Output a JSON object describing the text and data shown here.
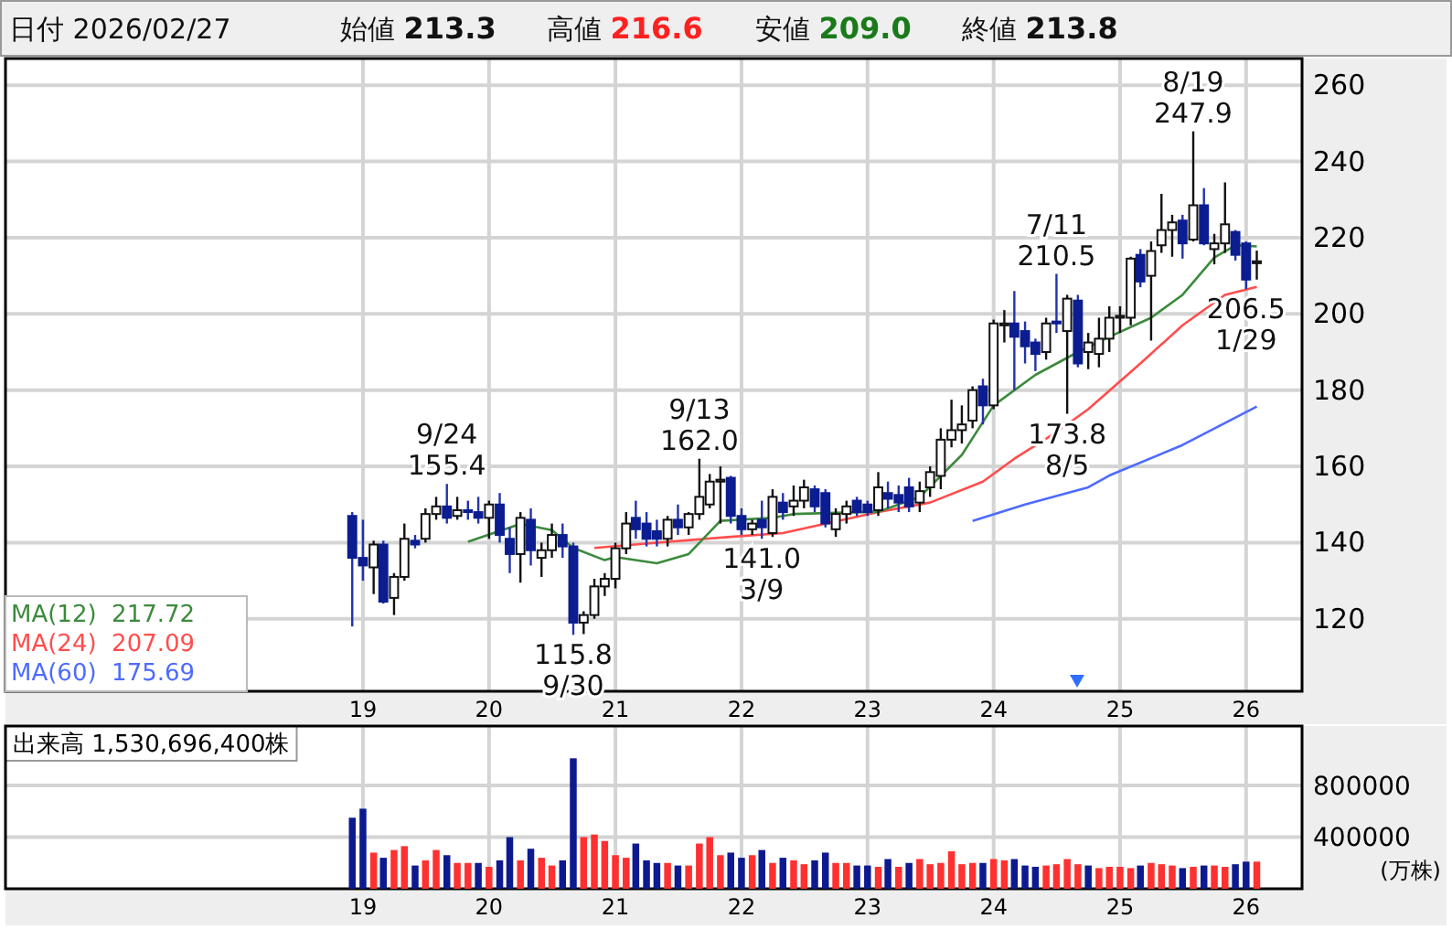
{
  "chart_data": [
    {
      "type": "candlestick",
      "legend": "bottom left",
      "grid": true,
      "annotations": [
        "日付 2026/02/27",
        "始値 213.3",
        "高値 216.6",
        "安値 209.0",
        "終値 213.8",
        {
          "text": "9/24",
          "x": "2019-09",
          "y": 155.4
        },
        {
          "text": "155.4",
          "x": "2019-09",
          "y": 155.4
        },
        {
          "text": "115.8",
          "x": "2020-09",
          "y": 115.8
        },
        {
          "text": "9/30",
          "x": "2020-09",
          "y": 115.8
        },
        {
          "text": "9/13",
          "x": "2021-09",
          "y": 162.0
        },
        {
          "text": "162.0",
          "x": "2021-09",
          "y": 162.0
        },
        {
          "text": "141.0",
          "x": "2022-03",
          "y": 141.0
        },
        {
          "text": "3/9",
          "x": "2022-03",
          "y": 141.0
        },
        {
          "text": "7/11",
          "x": "2024-07",
          "y": 210.5
        },
        {
          "text": "210.5",
          "x": "2024-07",
          "y": 210.5
        },
        {
          "text": "173.8",
          "x": "2024-08",
          "y": 173.8
        },
        {
          "text": "8/5",
          "x": "2024-08",
          "y": 173.8
        },
        {
          "text": "8/19",
          "x": "2025-08",
          "y": 247.9
        },
        {
          "text": "247.9",
          "x": "2025-08",
          "y": 247.9
        },
        {
          "text": "206.5",
          "x": "2026-01",
          "y": 206.5
        },
        {
          "text": "1/29",
          "x": "2026-01",
          "y": 206.5
        }
      ],
      "xlim": [
        "2016-03-02",
        "2026-06-12"
      ],
      "xticks": [
        {
          "value": "2019-01-01",
          "label": "19"
        },
        {
          "value": "2020-01-01",
          "label": "20"
        },
        {
          "value": "2021-01-01",
          "label": "21"
        },
        {
          "value": "2022-01-01",
          "label": "22"
        },
        {
          "value": "2023-01-01",
          "label": "23"
        },
        {
          "value": "2024-01-01",
          "label": "24"
        },
        {
          "value": "2025-01-01",
          "label": "25"
        },
        {
          "value": "2026-01-01",
          "label": "26"
        }
      ],
      "ylim": [
        101,
        267
      ],
      "yticks": [
        120,
        140,
        160,
        180,
        200,
        220,
        240,
        260
      ],
      "x": [
        "2018-12",
        "2019-01",
        "2019-02",
        "2019-03",
        "2019-04",
        "2019-05",
        "2019-06",
        "2019-07",
        "2019-08",
        "2019-09",
        "2019-10",
        "2019-11",
        "2019-12",
        "2020-01",
        "2020-02",
        "2020-03",
        "2020-04",
        "2020-05",
        "2020-06",
        "2020-07",
        "2020-08",
        "2020-09",
        "2020-10",
        "2020-11",
        "2020-12",
        "2021-01",
        "2021-02",
        "2021-03",
        "2021-04",
        "2021-05",
        "2021-06",
        "2021-07",
        "2021-08",
        "2021-09",
        "2021-10",
        "2021-11",
        "2021-12",
        "2022-01",
        "2022-02",
        "2022-03",
        "2022-04",
        "2022-05",
        "2022-06",
        "2022-07",
        "2022-08",
        "2022-09",
        "2022-10",
        "2022-11",
        "2022-12",
        "2023-01",
        "2023-02",
        "2023-03",
        "2023-04",
        "2023-05",
        "2023-06",
        "2023-07",
        "2023-08",
        "2023-09",
        "2023-10",
        "2023-11",
        "2023-12",
        "2024-01",
        "2024-02",
        "2024-03",
        "2024-04",
        "2024-05",
        "2024-06",
        "2024-07",
        "2024-08",
        "2024-09",
        "2024-10",
        "2024-11",
        "2024-12",
        "2025-01",
        "2025-02",
        "2025-03",
        "2025-04",
        "2025-05",
        "2025-06",
        "2025-07",
        "2025-08",
        "2025-09",
        "2025-10",
        "2025-11",
        "2025-12",
        "2026-01",
        "2026-02"
      ],
      "ohlc": [
        [
          147,
          148,
          118,
          136
        ],
        [
          136,
          146,
          130,
          134
        ],
        [
          133.5,
          140.5,
          126.5,
          139.5
        ],
        [
          139.5,
          140.5,
          124,
          124.5
        ],
        [
          125.5,
          132,
          121,
          131
        ],
        [
          131,
          145,
          130,
          141
        ],
        [
          140.5,
          142,
          138.5,
          139.5
        ],
        [
          141,
          149,
          140,
          147.5
        ],
        [
          147.5,
          152,
          146,
          149.5
        ],
        [
          149.5,
          155.4,
          145,
          146.5
        ],
        [
          147,
          152,
          146,
          148.5
        ],
        [
          148.5,
          151,
          146,
          148
        ],
        [
          148,
          152,
          145,
          146.5
        ],
        [
          146.5,
          151,
          141,
          150
        ],
        [
          150,
          153,
          140,
          142
        ],
        [
          141,
          144,
          132,
          137
        ],
        [
          137,
          148,
          129.5,
          146.5
        ],
        [
          146,
          149,
          134,
          138
        ],
        [
          136,
          140,
          131,
          138
        ],
        [
          138,
          145,
          136,
          142
        ],
        [
          142,
          145,
          136,
          139
        ],
        [
          139,
          140,
          115.8,
          119
        ],
        [
          119,
          122,
          116,
          121
        ],
        [
          121,
          130.5,
          120,
          128.5
        ],
        [
          128.5,
          132,
          126,
          130.5
        ],
        [
          130.5,
          140,
          128,
          138.5
        ],
        [
          138.5,
          148,
          137,
          145
        ],
        [
          146.5,
          151,
          141,
          143.5
        ],
        [
          145,
          148,
          139,
          141
        ],
        [
          143,
          146,
          139,
          141
        ],
        [
          141,
          147,
          139,
          146
        ],
        [
          146,
          150,
          142,
          144
        ],
        [
          144,
          148,
          142,
          147.5
        ],
        [
          147.5,
          162.0,
          146,
          152
        ],
        [
          150,
          158,
          149,
          156
        ],
        [
          156,
          160,
          145,
          156.5
        ],
        [
          157,
          157.5,
          145,
          147
        ],
        [
          147,
          149,
          142,
          143.5
        ],
        [
          143.5,
          146,
          142,
          145
        ],
        [
          146,
          151,
          141.0,
          144
        ],
        [
          142.5,
          154,
          141.5,
          152
        ],
        [
          150.5,
          153,
          146,
          148
        ],
        [
          149.5,
          155,
          147,
          151
        ],
        [
          151,
          156.5,
          149,
          154.5
        ],
        [
          154,
          155,
          148,
          149.5
        ],
        [
          153,
          154,
          144,
          145
        ],
        [
          143.5,
          149,
          141.5,
          147.5
        ],
        [
          147.5,
          151,
          145,
          149.5
        ],
        [
          151,
          152,
          147,
          148
        ],
        [
          150,
          151,
          147,
          148
        ],
        [
          148.5,
          158.5,
          147,
          154.5
        ],
        [
          153,
          156,
          149,
          151.5
        ],
        [
          152.5,
          155,
          148,
          150.5
        ],
        [
          154.5,
          157,
          148,
          149.5
        ],
        [
          150.5,
          156,
          148,
          153.5
        ],
        [
          154.5,
          160,
          152,
          158.5
        ],
        [
          157.5,
          170,
          154,
          167
        ],
        [
          167,
          177.5,
          165,
          169.5
        ],
        [
          169.5,
          176,
          166,
          171
        ],
        [
          172,
          181,
          170,
          180
        ],
        [
          181,
          183,
          171,
          176
        ],
        [
          176,
          198.5,
          175,
          197.5
        ],
        [
          197,
          201,
          192.5,
          197.5
        ],
        [
          197.5,
          206,
          180,
          194
        ],
        [
          195.5,
          198,
          187,
          191.5
        ],
        [
          192.5,
          193.5,
          185,
          189.5
        ],
        [
          190,
          199,
          188,
          197.5
        ],
        [
          198,
          210.5,
          195,
          197.5
        ],
        [
          195.5,
          205,
          173.8,
          204
        ],
        [
          203.5,
          205,
          186,
          187
        ],
        [
          190,
          195,
          185.5,
          192.5
        ],
        [
          189.5,
          199,
          186,
          193.5
        ],
        [
          193.5,
          202,
          190,
          199
        ],
        [
          199,
          202,
          195,
          199.5
        ],
        [
          199,
          215,
          197,
          214.5
        ],
        [
          215.5,
          217,
          207,
          208.5
        ],
        [
          210,
          219,
          193,
          216.5
        ],
        [
          218,
          231.5,
          216,
          222
        ],
        [
          222,
          226,
          215,
          224
        ],
        [
          224.5,
          226,
          214.5,
          218.5
        ],
        [
          219.5,
          247.9,
          219,
          228.5
        ],
        [
          228.5,
          233,
          218,
          218.5
        ],
        [
          217,
          221,
          213,
          218.5
        ],
        [
          218.5,
          234.5,
          216,
          223.5
        ],
        [
          221.5,
          222,
          214,
          215.5
        ],
        [
          218.5,
          219,
          206.5,
          209
        ],
        [
          213.3,
          216.6,
          209.0,
          213.8
        ]
      ],
      "series": [
        {
          "type": "line",
          "name": "MA(12)  217.72",
          "color": "#3c8a3c",
          "x": [
            "2019-11",
            "2020-04",
            "2020-07",
            "2020-09",
            "2020-12",
            "2021-01",
            "2021-05",
            "2021-08",
            "2021-11",
            "2022-04",
            "2022-06",
            "2023-02",
            "2023-06",
            "2023-10",
            "2024-01",
            "2024-05",
            "2024-09",
            "2024-12",
            "2025-04",
            "2025-07",
            "2025-10",
            "2025-12",
            "2026-02"
          ],
          "values": [
            140.2,
            144.9,
            143.3,
            138.6,
            135.4,
            136.2,
            134.6,
            137,
            145.7,
            146.5,
            147.5,
            148.1,
            152,
            163,
            176,
            184,
            190,
            194,
            199,
            205,
            214.8,
            218,
            217.7
          ]
        },
        {
          "type": "line",
          "name": "MA(24)  207.09",
          "color": "#ff4d4d",
          "x": [
            "2020-11",
            "2021-05",
            "2021-12",
            "2022-05",
            "2023-02",
            "2023-07",
            "2023-12",
            "2024-03",
            "2024-07",
            "2024-10",
            "2025-03",
            "2025-07",
            "2025-11",
            "2026-02"
          ],
          "values": [
            138.6,
            140,
            141.5,
            142.5,
            148,
            150.5,
            156,
            162,
            169,
            175,
            187,
            197,
            205,
            207.1
          ]
        },
        {
          "type": "line",
          "name": "MA(60)  175.69",
          "color": "#4d6bff",
          "x": [
            "2023-11",
            "2024-04",
            "2024-10",
            "2024-12",
            "2025-07",
            "2026-02"
          ],
          "values": [
            145.7,
            150,
            154.5,
            157.6,
            165.6,
            175.7
          ]
        }
      ]
    },
    {
      "type": "bar",
      "title": "出来高 1,530,696,400株",
      "ylabel": "(万株)",
      "grid": true,
      "xlim": [
        "2016-03-02",
        "2026-06-12"
      ],
      "xticks": [
        {
          "value": "2019-01-01",
          "label": "19"
        },
        {
          "value": "2020-01-01",
          "label": "20"
        },
        {
          "value": "2021-01-01",
          "label": "21"
        },
        {
          "value": "2022-01-01",
          "label": "22"
        },
        {
          "value": "2023-01-01",
          "label": "23"
        },
        {
          "value": "2024-01-01",
          "label": "24"
        },
        {
          "value": "2025-01-01",
          "label": "25"
        },
        {
          "value": "2026-01-01",
          "label": "26"
        }
      ],
      "ylim": [
        0,
        1260000
      ],
      "yticks": [
        400000,
        800000
      ],
      "x": [
        "2018-12",
        "2019-01",
        "2019-02",
        "2019-03",
        "2019-04",
        "2019-05",
        "2019-06",
        "2019-07",
        "2019-08",
        "2019-09",
        "2019-10",
        "2019-11",
        "2019-12",
        "2020-01",
        "2020-02",
        "2020-03",
        "2020-04",
        "2020-05",
        "2020-06",
        "2020-07",
        "2020-08",
        "2020-09",
        "2020-10",
        "2020-11",
        "2020-12",
        "2021-01",
        "2021-02",
        "2021-03",
        "2021-04",
        "2021-05",
        "2021-06",
        "2021-07",
        "2021-08",
        "2021-09",
        "2021-10",
        "2021-11",
        "2021-12",
        "2022-01",
        "2022-02",
        "2022-03",
        "2022-04",
        "2022-05",
        "2022-06",
        "2022-07",
        "2022-08",
        "2022-09",
        "2022-10",
        "2022-11",
        "2022-12",
        "2023-01",
        "2023-02",
        "2023-03",
        "2023-04",
        "2023-05",
        "2023-06",
        "2023-07",
        "2023-08",
        "2023-09",
        "2023-10",
        "2023-11",
        "2023-12",
        "2024-01",
        "2024-02",
        "2024-03",
        "2024-04",
        "2024-05",
        "2024-06",
        "2024-07",
        "2024-08",
        "2024-09",
        "2024-10",
        "2024-11",
        "2024-12",
        "2025-01",
        "2025-02",
        "2025-03",
        "2025-04",
        "2025-05",
        "2025-06",
        "2025-07",
        "2025-08",
        "2025-09",
        "2025-10",
        "2025-11",
        "2025-12",
        "2026-01",
        "2026-02"
      ],
      "values": [
        550000,
        620000,
        280000,
        240000,
        300000,
        330000,
        180000,
        220000,
        300000,
        260000,
        200000,
        200000,
        200000,
        170000,
        220000,
        400000,
        220000,
        310000,
        240000,
        180000,
        220000,
        1010000,
        400000,
        420000,
        370000,
        260000,
        240000,
        350000,
        220000,
        200000,
        200000,
        180000,
        180000,
        350000,
        400000,
        260000,
        280000,
        240000,
        260000,
        300000,
        200000,
        240000,
        220000,
        190000,
        220000,
        280000,
        200000,
        200000,
        180000,
        180000,
        170000,
        230000,
        170000,
        200000,
        230000,
        190000,
        200000,
        290000,
        190000,
        200000,
        200000,
        230000,
        220000,
        230000,
        180000,
        170000,
        180000,
        190000,
        230000,
        190000,
        180000,
        160000,
        170000,
        170000,
        160000,
        180000,
        200000,
        190000,
        180000,
        160000,
        170000,
        180000,
        180000,
        170000,
        190000,
        210000,
        210000
      ],
      "colors": [
        "#0d1a8f",
        "#0d1a8f",
        "#ff3030",
        "#0d1a8f",
        "#ff3030",
        "#ff3030",
        "#0d1a8f",
        "#ff3030",
        "#ff3030",
        "#0d1a8f",
        "#ff3030",
        "#ff3030",
        "#0d1a8f",
        "#ff3030",
        "#0d1a8f",
        "#0d1a8f",
        "#ff3030",
        "#0d1a8f",
        "#ff3030",
        "#ff3030",
        "#0d1a8f",
        "#0d1a8f",
        "#ff3030",
        "#ff3030",
        "#ff3030",
        "#ff3030",
        "#ff3030",
        "#0d1a8f",
        "#0d1a8f",
        "#0d1a8f",
        "#ff3030",
        "#0d1a8f",
        "#ff3030",
        "#ff3030",
        "#ff3030",
        "#ff3030",
        "#0d1a8f",
        "#0d1a8f",
        "#ff3030",
        "#0d1a8f",
        "#ff3030",
        "#0d1a8f",
        "#ff3030",
        "#ff3030",
        "#0d1a8f",
        "#0d1a8f",
        "#ff3030",
        "#ff3030",
        "#0d1a8f",
        "#0d1a8f",
        "#ff3030",
        "#0d1a8f",
        "#ff3030",
        "#0d1a8f",
        "#ff3030",
        "#ff3030",
        "#ff3030",
        "#ff3030",
        "#ff3030",
        "#ff3030",
        "#0d1a8f",
        "#ff3030",
        "#ff3030",
        "#0d1a8f",
        "#0d1a8f",
        "#0d1a8f",
        "#ff3030",
        "#ff3030",
        "#ff3030",
        "#ff3030",
        "#0d1a8f",
        "#ff3030",
        "#ff3030",
        "#ff3030",
        "#ff3030",
        "#0d1a8f",
        "#ff3030",
        "#ff3030",
        "#ff3030",
        "#0d1a8f",
        "#ff3030",
        "#0d1a8f",
        "#ff3030",
        "#ff3030",
        "#0d1a8f",
        "#0d1a8f",
        "#ff3030"
      ]
    }
  ]
}
